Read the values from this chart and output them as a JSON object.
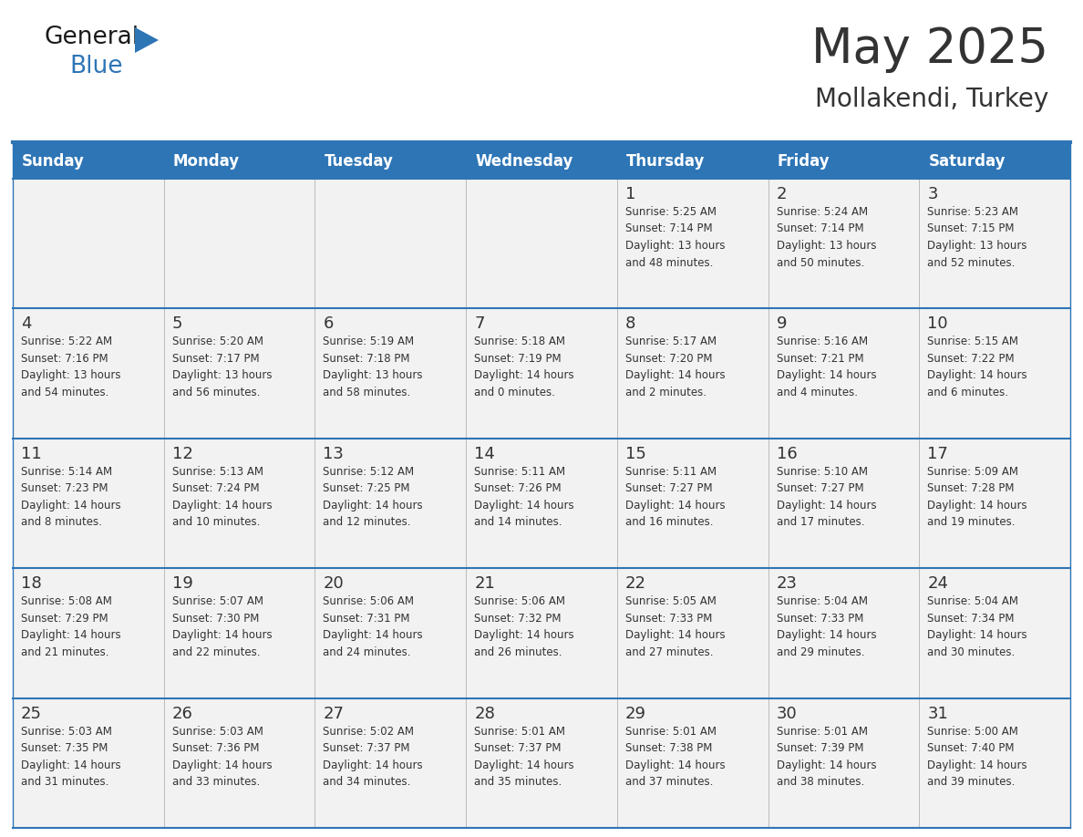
{
  "title": "May 2025",
  "subtitle": "Mollakendi, Turkey",
  "header_color": "#2E75B6",
  "header_text_color": "#FFFFFF",
  "cell_bg_color": "#F2F2F2",
  "border_color": "#2E75B6",
  "text_color": "#333333",
  "days_of_week": [
    "Sunday",
    "Monday",
    "Tuesday",
    "Wednesday",
    "Thursday",
    "Friday",
    "Saturday"
  ],
  "weeks": [
    [
      {
        "day": "",
        "info": ""
      },
      {
        "day": "",
        "info": ""
      },
      {
        "day": "",
        "info": ""
      },
      {
        "day": "",
        "info": ""
      },
      {
        "day": "1",
        "info": "Sunrise: 5:25 AM\nSunset: 7:14 PM\nDaylight: 13 hours\nand 48 minutes."
      },
      {
        "day": "2",
        "info": "Sunrise: 5:24 AM\nSunset: 7:14 PM\nDaylight: 13 hours\nand 50 minutes."
      },
      {
        "day": "3",
        "info": "Sunrise: 5:23 AM\nSunset: 7:15 PM\nDaylight: 13 hours\nand 52 minutes."
      }
    ],
    [
      {
        "day": "4",
        "info": "Sunrise: 5:22 AM\nSunset: 7:16 PM\nDaylight: 13 hours\nand 54 minutes."
      },
      {
        "day": "5",
        "info": "Sunrise: 5:20 AM\nSunset: 7:17 PM\nDaylight: 13 hours\nand 56 minutes."
      },
      {
        "day": "6",
        "info": "Sunrise: 5:19 AM\nSunset: 7:18 PM\nDaylight: 13 hours\nand 58 minutes."
      },
      {
        "day": "7",
        "info": "Sunrise: 5:18 AM\nSunset: 7:19 PM\nDaylight: 14 hours\nand 0 minutes."
      },
      {
        "day": "8",
        "info": "Sunrise: 5:17 AM\nSunset: 7:20 PM\nDaylight: 14 hours\nand 2 minutes."
      },
      {
        "day": "9",
        "info": "Sunrise: 5:16 AM\nSunset: 7:21 PM\nDaylight: 14 hours\nand 4 minutes."
      },
      {
        "day": "10",
        "info": "Sunrise: 5:15 AM\nSunset: 7:22 PM\nDaylight: 14 hours\nand 6 minutes."
      }
    ],
    [
      {
        "day": "11",
        "info": "Sunrise: 5:14 AM\nSunset: 7:23 PM\nDaylight: 14 hours\nand 8 minutes."
      },
      {
        "day": "12",
        "info": "Sunrise: 5:13 AM\nSunset: 7:24 PM\nDaylight: 14 hours\nand 10 minutes."
      },
      {
        "day": "13",
        "info": "Sunrise: 5:12 AM\nSunset: 7:25 PM\nDaylight: 14 hours\nand 12 minutes."
      },
      {
        "day": "14",
        "info": "Sunrise: 5:11 AM\nSunset: 7:26 PM\nDaylight: 14 hours\nand 14 minutes."
      },
      {
        "day": "15",
        "info": "Sunrise: 5:11 AM\nSunset: 7:27 PM\nDaylight: 14 hours\nand 16 minutes."
      },
      {
        "day": "16",
        "info": "Sunrise: 5:10 AM\nSunset: 7:27 PM\nDaylight: 14 hours\nand 17 minutes."
      },
      {
        "day": "17",
        "info": "Sunrise: 5:09 AM\nSunset: 7:28 PM\nDaylight: 14 hours\nand 19 minutes."
      }
    ],
    [
      {
        "day": "18",
        "info": "Sunrise: 5:08 AM\nSunset: 7:29 PM\nDaylight: 14 hours\nand 21 minutes."
      },
      {
        "day": "19",
        "info": "Sunrise: 5:07 AM\nSunset: 7:30 PM\nDaylight: 14 hours\nand 22 minutes."
      },
      {
        "day": "20",
        "info": "Sunrise: 5:06 AM\nSunset: 7:31 PM\nDaylight: 14 hours\nand 24 minutes."
      },
      {
        "day": "21",
        "info": "Sunrise: 5:06 AM\nSunset: 7:32 PM\nDaylight: 14 hours\nand 26 minutes."
      },
      {
        "day": "22",
        "info": "Sunrise: 5:05 AM\nSunset: 7:33 PM\nDaylight: 14 hours\nand 27 minutes."
      },
      {
        "day": "23",
        "info": "Sunrise: 5:04 AM\nSunset: 7:33 PM\nDaylight: 14 hours\nand 29 minutes."
      },
      {
        "day": "24",
        "info": "Sunrise: 5:04 AM\nSunset: 7:34 PM\nDaylight: 14 hours\nand 30 minutes."
      }
    ],
    [
      {
        "day": "25",
        "info": "Sunrise: 5:03 AM\nSunset: 7:35 PM\nDaylight: 14 hours\nand 31 minutes."
      },
      {
        "day": "26",
        "info": "Sunrise: 5:03 AM\nSunset: 7:36 PM\nDaylight: 14 hours\nand 33 minutes."
      },
      {
        "day": "27",
        "info": "Sunrise: 5:02 AM\nSunset: 7:37 PM\nDaylight: 14 hours\nand 34 minutes."
      },
      {
        "day": "28",
        "info": "Sunrise: 5:01 AM\nSunset: 7:37 PM\nDaylight: 14 hours\nand 35 minutes."
      },
      {
        "day": "29",
        "info": "Sunrise: 5:01 AM\nSunset: 7:38 PM\nDaylight: 14 hours\nand 37 minutes."
      },
      {
        "day": "30",
        "info": "Sunrise: 5:01 AM\nSunset: 7:39 PM\nDaylight: 14 hours\nand 38 minutes."
      },
      {
        "day": "31",
        "info": "Sunrise: 5:00 AM\nSunset: 7:40 PM\nDaylight: 14 hours\nand 39 minutes."
      }
    ]
  ],
  "logo_text1": "General",
  "logo_text2": "Blue",
  "logo_color1": "#1a1a1a",
  "logo_color2": "#2E75B6",
  "logo_triangle_color": "#2E75B6",
  "title_fontsize": 38,
  "subtitle_fontsize": 20,
  "header_fontsize": 12,
  "day_number_fontsize": 13,
  "cell_text_fontsize": 8.5
}
